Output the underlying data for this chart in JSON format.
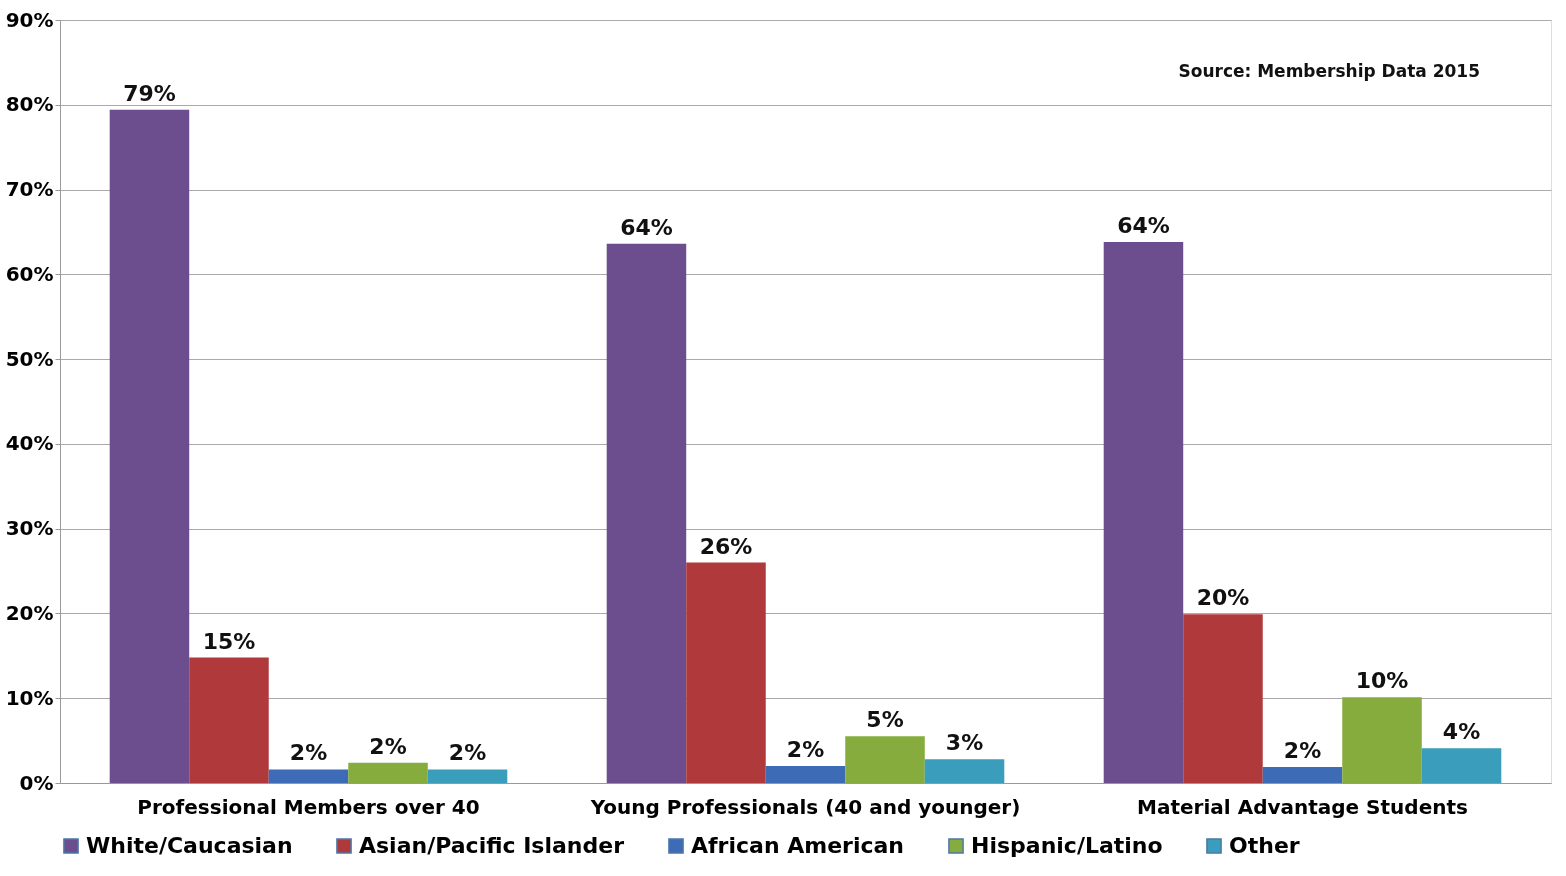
{
  "chart_data": {
    "type": "bar",
    "categories": [
      "Professional Members over 40",
      "Young Professionals (40 and younger)",
      "Material Advantage Students"
    ],
    "series": [
      {
        "name": "White/Caucasian",
        "color": "#6c4d8e",
        "values": [
          79.4,
          63.6,
          63.8
        ],
        "value_labels": [
          "79%",
          "64%",
          "64%"
        ]
      },
      {
        "name": "Asian/Pacific Islander",
        "color": "#b0393b",
        "values": [
          14.8,
          26.0,
          19.9
        ],
        "value_labels": [
          "15%",
          "26%",
          "20%"
        ]
      },
      {
        "name": "African American",
        "color": "#3e6bb5",
        "values": [
          1.6,
          2.0,
          1.9
        ],
        "value_labels": [
          "2%",
          "2%",
          "2%"
        ]
      },
      {
        "name": "Hispanic/Latino",
        "color": "#86ac3e",
        "values": [
          2.4,
          5.5,
          10.1
        ],
        "value_labels": [
          "2%",
          "5%",
          "10%"
        ]
      },
      {
        "name": "Other",
        "color": "#3a9dbb",
        "values": [
          1.6,
          2.8,
          4.1
        ],
        "value_labels": [
          "2%",
          "3%",
          "4%"
        ]
      }
    ],
    "ylim": [
      0,
      90
    ],
    "yticks": [
      {
        "value": 0,
        "label": "0%"
      },
      {
        "value": 10,
        "label": "10%"
      },
      {
        "value": 20,
        "label": "20%"
      },
      {
        "value": 30,
        "label": "30%"
      },
      {
        "value": 40,
        "label": "40%"
      },
      {
        "value": 50,
        "label": "50%"
      },
      {
        "value": 60,
        "label": "60%"
      },
      {
        "value": 70,
        "label": "70%"
      },
      {
        "value": 80,
        "label": "80%"
      },
      {
        "value": 90,
        "label": "90%"
      }
    ],
    "grid": "y",
    "legend": "bottom",
    "annotations": [
      "Source: Membership Data 2015"
    ]
  }
}
